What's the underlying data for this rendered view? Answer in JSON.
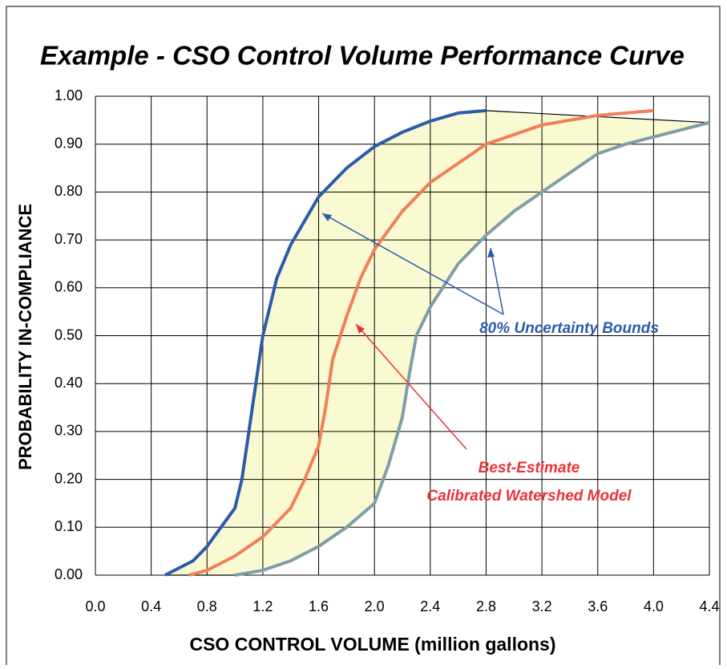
{
  "chart_data": {
    "type": "line",
    "title": "Example - CSO Control Volume Performance Curve",
    "x_label": "CSO CONTROL VOLUME (million gallons)",
    "y_label": "PROBABILITY  IN-COMPLIANCE",
    "xlim": [
      0,
      4.4
    ],
    "ylim": [
      0,
      1
    ],
    "xticks": [
      {
        "value": 0,
        "label": "0.0"
      },
      0.4,
      0.8,
      1.2,
      1.6,
      {
        "value": 2,
        "label": "2.0"
      },
      2.4,
      2.8,
      3.2,
      3.6,
      {
        "value": 4,
        "label": "4.0"
      },
      4.4
    ],
    "yticks": [
      {
        "value": 0,
        "label": "0.00"
      },
      {
        "value": 0.1,
        "label": "0.10"
      },
      {
        "value": 0.2,
        "label": "0.20"
      },
      {
        "value": 0.3,
        "label": "0.30"
      },
      {
        "value": 0.4,
        "label": "0.40"
      },
      {
        "value": 0.5,
        "label": "0.50"
      },
      {
        "value": 0.6,
        "label": "0.60"
      },
      {
        "value": 0.7,
        "label": "0.70"
      },
      {
        "value": 0.8,
        "label": "0.80"
      },
      {
        "value": 0.9,
        "label": "0.90"
      },
      {
        "value": 1,
        "label": "1.00"
      }
    ],
    "grid": true,
    "band_color": "#fafad2",
    "series": [
      {
        "color": "#2a5caa",
        "x": [
          0.5,
          0.7,
          0.8,
          0.9,
          1.0,
          1.05,
          1.1,
          1.15,
          1.2,
          1.25,
          1.3,
          1.4,
          1.5,
          1.6,
          1.8,
          2.0,
          2.2,
          2.4,
          2.6,
          2.8
        ],
        "values": [
          0.0,
          0.03,
          0.06,
          0.1,
          0.14,
          0.2,
          0.3,
          0.4,
          0.5,
          0.56,
          0.62,
          0.69,
          0.74,
          0.79,
          0.85,
          0.895,
          0.925,
          0.948,
          0.965,
          0.97
        ]
      },
      {
        "color": "#f07f5a",
        "x": [
          0.67,
          0.8,
          1.0,
          1.2,
          1.4,
          1.5,
          1.6,
          1.65,
          1.7,
          1.8,
          1.9,
          2.0,
          2.2,
          2.4,
          2.6,
          2.8,
          3.0,
          3.2,
          3.6,
          4.0
        ],
        "values": [
          0.0,
          0.01,
          0.04,
          0.08,
          0.14,
          0.2,
          0.27,
          0.35,
          0.45,
          0.54,
          0.62,
          0.68,
          0.76,
          0.82,
          0.86,
          0.9,
          0.92,
          0.94,
          0.96,
          0.97
        ]
      },
      {
        "color": "#7f9ea5",
        "x": [
          1.0,
          1.2,
          1.4,
          1.6,
          1.8,
          2.0,
          2.1,
          2.2,
          2.25,
          2.3,
          2.4,
          2.6,
          2.8,
          3.0,
          3.2,
          3.4,
          3.6,
          3.8,
          4.0,
          4.2,
          4.4
        ],
        "values": [
          0.0,
          0.01,
          0.03,
          0.06,
          0.1,
          0.15,
          0.23,
          0.33,
          0.42,
          0.5,
          0.56,
          0.65,
          0.71,
          0.76,
          0.8,
          0.84,
          0.88,
          0.9,
          0.915,
          0.93,
          0.945
        ]
      }
    ],
    "annotations": [
      "80% Uncertainty Bounds",
      "Best-Estimate",
      "Calibrated Watershed Model"
    ]
  }
}
